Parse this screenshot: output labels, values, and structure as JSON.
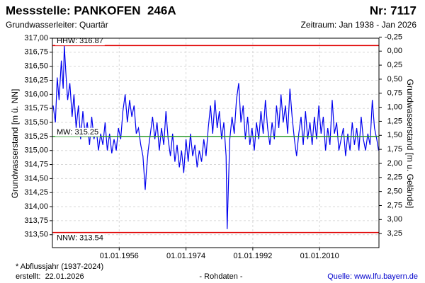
{
  "chart_data": {
    "type": "line",
    "title": "Messstelle: PANKOFEN  246A",
    "number": "Nr: 7117",
    "subtitle": "Grundwasserleiter: Quartär",
    "period": "Zeitraum: Jan 1938 - Jan 2026",
    "y_label": "Grundwasserstand [m ü. NN]",
    "y2_label": "Grundwasserstand [m u. Gelände]",
    "footnote": "* Abflussjahr (1937-2024)",
    "created": "erstellt:  22.01.2026",
    "data_note": "- Rohdaten -",
    "source": "Quelle: www.lfu.bayern.de",
    "grid": true,
    "xlim": [
      1938,
      2026
    ],
    "xticks": [
      {
        "value": 1956,
        "label": "01.01.1956"
      },
      {
        "value": 1974,
        "label": "01.01.1974"
      },
      {
        "value": 1992,
        "label": "01.01.1992"
      },
      {
        "value": 2010,
        "label": "01.01.2010"
      }
    ],
    "ylim": [
      313.27,
      317.0
    ],
    "yticks": [
      {
        "value": 313.5,
        "label": "313,50"
      },
      {
        "value": 313.75,
        "label": "313,75"
      },
      {
        "value": 314,
        "label": "314,00"
      },
      {
        "value": 314.25,
        "label": "314,25"
      },
      {
        "value": 314.5,
        "label": "314,50"
      },
      {
        "value": 314.75,
        "label": "314,75"
      },
      {
        "value": 315,
        "label": "315,00"
      },
      {
        "value": 315.25,
        "label": "315,25"
      },
      {
        "value": 315.5,
        "label": "315,50"
      },
      {
        "value": 315.75,
        "label": "315,75"
      },
      {
        "value": 316,
        "label": "316,00"
      },
      {
        "value": 316.25,
        "label": "316,25"
      },
      {
        "value": 316.5,
        "label": "316,50"
      },
      {
        "value": 316.75,
        "label": "316,75"
      },
      {
        "value": 317,
        "label": "317,00"
      }
    ],
    "y2lim": [
      -0.23,
      3.5
    ],
    "y2_inverted": true,
    "y2ticks": [
      {
        "value": -0.25,
        "label": "-0,25"
      },
      {
        "value": 0,
        "label": "0,00"
      },
      {
        "value": 0.25,
        "label": "0,25"
      },
      {
        "value": 0.5,
        "label": "0,50"
      },
      {
        "value": 0.75,
        "label": "0,75"
      },
      {
        "value": 1,
        "label": "1,00"
      },
      {
        "value": 1.25,
        "label": "1,25"
      },
      {
        "value": 1.5,
        "label": "1,50"
      },
      {
        "value": 1.75,
        "label": "1,75"
      },
      {
        "value": 2,
        "label": "2,00"
      },
      {
        "value": 2.25,
        "label": "2,25"
      },
      {
        "value": 2.5,
        "label": "2,50"
      },
      {
        "value": 2.75,
        "label": "2,75"
      },
      {
        "value": 3,
        "label": "3,00"
      },
      {
        "value": 3.25,
        "label": "3,25"
      }
    ],
    "reference_lines": [
      {
        "label": "HHW: 316.87",
        "value": 316.87,
        "color": "#e00000"
      },
      {
        "label": "MW: 315.25",
        "value": 315.25,
        "color": "#2a9a2a"
      },
      {
        "label": "NNW: 313.54",
        "value": 313.54,
        "color": "#e00000"
      }
    ],
    "x": [
      1938.2,
      1938.8,
      1939.3,
      1939.8,
      1940.4,
      1940.9,
      1941.2,
      1941.6,
      1942.1,
      1942.7,
      1943.3,
      1943.8,
      1944.4,
      1945.0,
      1945.6,
      1946.2,
      1946.8,
      1947.4,
      1948.0,
      1948.6,
      1949.2,
      1949.8,
      1950.4,
      1951.0,
      1951.6,
      1952.2,
      1952.8,
      1953.4,
      1954.0,
      1954.6,
      1955.2,
      1955.8,
      1956.4,
      1957.0,
      1957.6,
      1958.2,
      1958.8,
      1959.4,
      1960.0,
      1960.6,
      1961.2,
      1961.8,
      1962.4,
      1963.0,
      1963.3,
      1963.8,
      1964.4,
      1965.0,
      1965.6,
      1966.2,
      1966.8,
      1967.4,
      1968.0,
      1968.6,
      1969.2,
      1969.8,
      1970.4,
      1971.0,
      1971.6,
      1972.2,
      1972.8,
      1973.4,
      1974.0,
      1974.6,
      1975.2,
      1975.8,
      1976.4,
      1977.0,
      1977.6,
      1978.2,
      1978.8,
      1979.4,
      1980.0,
      1980.6,
      1981.2,
      1981.8,
      1982.4,
      1983.0,
      1983.6,
      1984.2,
      1984.8,
      1985.1,
      1985.4,
      1985.8,
      1986.4,
      1987.0,
      1987.6,
      1988.2,
      1988.8,
      1989.4,
      1990.0,
      1990.6,
      1991.2,
      1991.8,
      1992.4,
      1993.0,
      1993.6,
      1994.2,
      1994.8,
      1995.4,
      1996.0,
      1996.6,
      1997.2,
      1997.8,
      1998.4,
      1999.0,
      1999.6,
      2000.2,
      2000.8,
      2001.4,
      2002.0,
      2002.6,
      2003.2,
      2003.8,
      2004.4,
      2005.0,
      2005.6,
      2006.2,
      2006.8,
      2007.4,
      2008.0,
      2008.6,
      2009.2,
      2009.8,
      2010.4,
      2011.0,
      2011.6,
      2012.2,
      2012.8,
      2013.4,
      2014.0,
      2014.6,
      2015.2,
      2015.8,
      2016.4,
      2017.0,
      2017.6,
      2018.2,
      2018.8,
      2019.4,
      2020.0,
      2020.6,
      2021.2,
      2021.8,
      2022.4,
      2023.0,
      2023.6,
      2024.2,
      2024.8,
      2025.4,
      2025.9
    ],
    "series": [
      {
        "name": "Grundwasserstand",
        "color": "#0000ee",
        "values": [
          315.8,
          315.5,
          316.3,
          315.9,
          316.6,
          316.1,
          316.87,
          316.4,
          315.9,
          316.2,
          315.6,
          316.0,
          315.4,
          315.8,
          315.2,
          315.7,
          315.3,
          315.5,
          315.1,
          315.6,
          315.2,
          315.4,
          315.0,
          315.3,
          315.1,
          315.5,
          315.0,
          315.3,
          314.95,
          315.2,
          315.0,
          315.4,
          315.2,
          315.7,
          316.0,
          315.5,
          315.9,
          315.6,
          315.8,
          315.3,
          315.4,
          315.1,
          314.9,
          314.3,
          314.6,
          315.0,
          315.3,
          315.6,
          315.2,
          315.5,
          315.0,
          315.4,
          315.1,
          315.7,
          315.2,
          314.9,
          315.3,
          314.8,
          315.1,
          314.7,
          315.0,
          314.6,
          315.2,
          314.8,
          315.3,
          314.9,
          315.1,
          314.7,
          315.0,
          314.8,
          315.2,
          314.9,
          315.4,
          315.8,
          315.3,
          315.9,
          315.4,
          315.7,
          315.2,
          315.5,
          314.9,
          313.6,
          314.3,
          315.2,
          315.6,
          315.3,
          315.9,
          316.2,
          315.5,
          315.8,
          315.2,
          315.6,
          315.1,
          315.4,
          315.0,
          315.5,
          315.2,
          315.7,
          315.3,
          315.9,
          315.4,
          315.1,
          315.5,
          315.2,
          315.8,
          315.4,
          316.0,
          315.5,
          315.8,
          315.3,
          316.1,
          315.6,
          315.2,
          314.9,
          315.3,
          315.6,
          315.1,
          315.7,
          315.2,
          315.5,
          315.1,
          315.6,
          315.2,
          315.8,
          315.3,
          315.6,
          315.0,
          315.4,
          315.1,
          315.9,
          315.3,
          315.5,
          315.0,
          315.2,
          315.4,
          314.9,
          315.3,
          315.0,
          315.5,
          315.1,
          315.4,
          315.0,
          315.6,
          315.2,
          315.0,
          315.3,
          315.1,
          315.9,
          315.4,
          315.2,
          315.0
        ]
      }
    ]
  }
}
